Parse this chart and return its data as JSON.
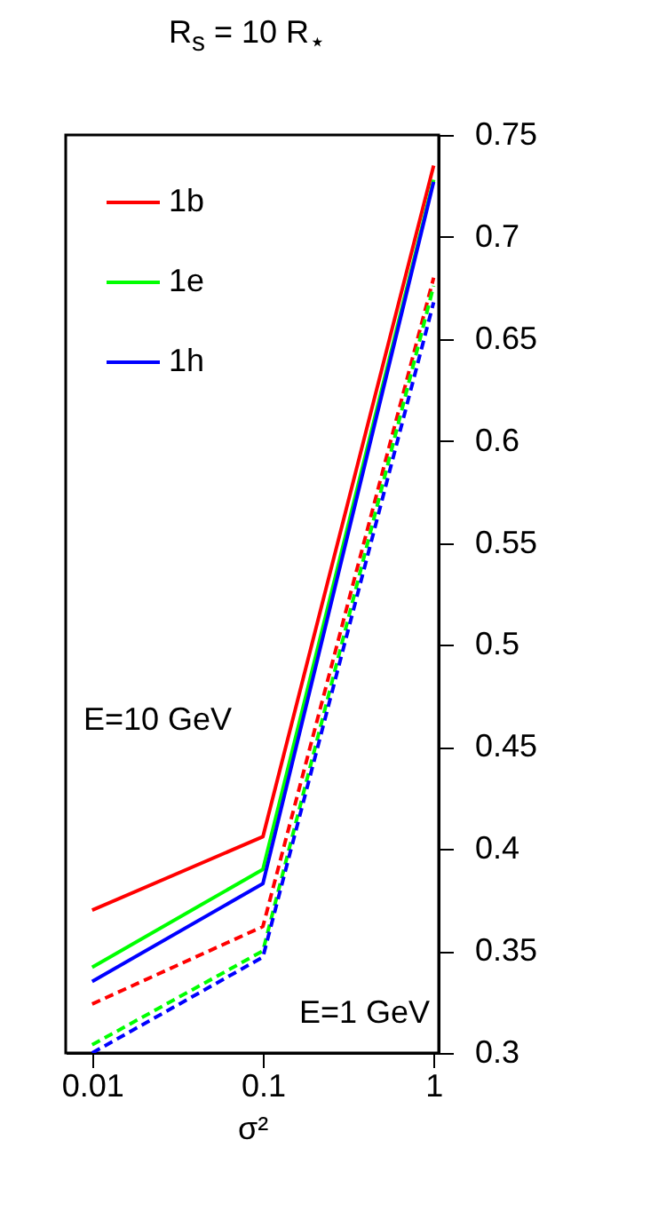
{
  "chart_data": {
    "type": "line",
    "title": "R$_{s}$ = 10 R$_{⋆}$",
    "xlabel": "σ²",
    "x": [
      0.01,
      0.1,
      1
    ],
    "series": [
      {
        "name": "1b",
        "color": "#ff0000",
        "line_style": "solid",
        "values": [
          0.37,
          0.406,
          0.735
        ]
      },
      {
        "name": "1e",
        "color": "#00ff00",
        "line_style": "solid",
        "values": [
          0.342,
          0.39,
          0.728
        ]
      },
      {
        "name": "1h",
        "color": "#0000ff",
        "line_style": "solid",
        "values": [
          0.335,
          0.383,
          0.727
        ]
      },
      {
        "color": "#ff0000",
        "line_style": "dashed",
        "values": [
          0.324,
          0.362,
          0.68
        ]
      },
      {
        "color": "#00ff00",
        "line_style": "dashed",
        "values": [
          0.304,
          0.35,
          0.676
        ]
      },
      {
        "color": "#0000ff",
        "line_style": "dashed",
        "values": [
          0.3,
          0.347,
          0.668
        ]
      }
    ],
    "log": "x",
    "xlim": [
      0.007,
      1.07
    ],
    "xticks": [
      0.01,
      0.1,
      1
    ],
    "ylim": [
      0.3,
      0.75
    ],
    "yticks": [
      0.3,
      0.35,
      0.4,
      0.45,
      0.5,
      0.55,
      0.6,
      0.65,
      0.7,
      0.75
    ],
    "grid": false,
    "legend": "top left",
    "marker": "none",
    "annotations": [
      "E=10 GeV",
      "E=1 GeV"
    ]
  }
}
